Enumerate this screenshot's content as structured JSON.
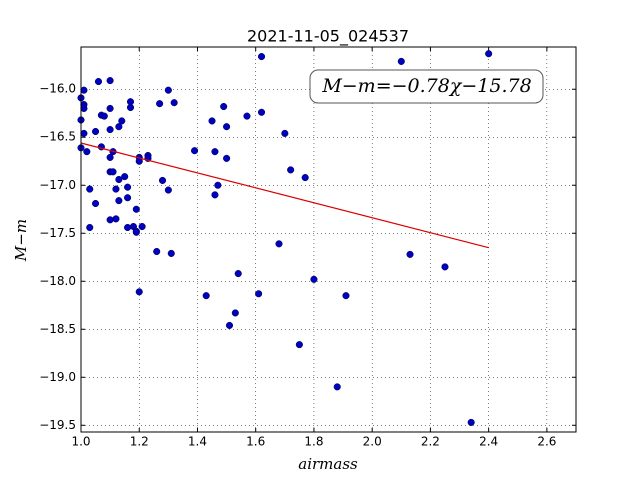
{
  "chart_data": {
    "type": "scatter",
    "title": "2021-11-05_024537",
    "x_label": "airmass",
    "y_label": "M−m",
    "annotation": "M−m=−0.78χ−15.78",
    "color": "#0000c0",
    "x": [
      1.01,
      1.0,
      1.01,
      1.0,
      1.01,
      1.01,
      1.0,
      1.02,
      1.03,
      1.05,
      1.03,
      1.05,
      1.06,
      1.07,
      1.08,
      1.07,
      1.1,
      1.1,
      1.1,
      1.1,
      1.11,
      1.1,
      1.11,
      1.1,
      1.13,
      1.14,
      1.13,
      1.12,
      1.13,
      1.12,
      1.15,
      1.16,
      1.16,
      1.16,
      1.17,
      1.17,
      1.18,
      1.19,
      1.19,
      1.19,
      1.2,
      1.2,
      1.21,
      1.23,
      1.23,
      1.2,
      1.26,
      1.27,
      1.28,
      1.3,
      1.3,
      1.32,
      1.31,
      1.39,
      1.43,
      1.45,
      1.46,
      1.46,
      1.47,
      1.49,
      1.5,
      1.5,
      1.51,
      1.53,
      1.54,
      1.57,
      1.61,
      1.62,
      1.62,
      1.68,
      1.7,
      1.72,
      1.75,
      1.77,
      1.8,
      1.88,
      1.91,
      2.1,
      2.13,
      2.25,
      2.34,
      2.4
    ],
    "values": [
      -16.01,
      -16.09,
      -16.16,
      -16.32,
      -16.2,
      -16.46,
      -16.61,
      -16.65,
      -17.04,
      -17.19,
      -17.44,
      -16.44,
      -15.92,
      -16.27,
      -16.28,
      -16.6,
      -15.91,
      -16.2,
      -16.42,
      -16.71,
      -16.65,
      -16.86,
      -16.86,
      -17.36,
      -16.39,
      -16.33,
      -16.94,
      -17.04,
      -17.16,
      -17.35,
      -16.91,
      -17.02,
      -17.13,
      -17.44,
      -16.13,
      -16.19,
      -17.43,
      -17.48,
      -17.25,
      -17.49,
      -16.71,
      -16.75,
      -17.43,
      -16.69,
      -16.72,
      -18.11,
      -17.69,
      -16.15,
      -16.95,
      -16.01,
      -17.05,
      -16.14,
      -17.71,
      -16.64,
      -18.15,
      -16.33,
      -16.65,
      -17.1,
      -17.0,
      -16.18,
      -16.39,
      -16.72,
      -18.46,
      -18.33,
      -17.92,
      -16.28,
      -18.13,
      -16.24,
      -15.66,
      -17.61,
      -16.46,
      -16.84,
      -18.66,
      -16.92,
      -17.98,
      -19.1,
      -18.15,
      -15.71,
      -17.72,
      -17.85,
      -19.47,
      -15.63
    ],
    "fit_line": {
      "x": [
        1.0,
        2.4
      ],
      "values": [
        -16.56,
        -17.65
      ],
      "color": "#dd0000"
    },
    "xlim": [
      1.0,
      2.7
    ],
    "ylim": [
      -19.57,
      -15.56
    ],
    "xticks": [
      {
        "value": 1.0,
        "label": "1.0"
      },
      {
        "value": 1.2,
        "label": "1.2"
      },
      {
        "value": 1.4,
        "label": "1.4"
      },
      {
        "value": 1.6,
        "label": "1.6"
      },
      {
        "value": 1.8,
        "label": "1.8"
      },
      {
        "value": 2.0,
        "label": "2.0"
      },
      {
        "value": 2.2,
        "label": "2.2"
      },
      {
        "value": 2.4,
        "label": "2.4"
      },
      {
        "value": 2.6,
        "label": "2.6"
      }
    ],
    "yticks": [
      {
        "value": -16.0,
        "label": "−16.0"
      },
      {
        "value": -16.5,
        "label": "−16.5"
      },
      {
        "value": -17.0,
        "label": "−17.0"
      },
      {
        "value": -17.5,
        "label": "−17.5"
      },
      {
        "value": -18.0,
        "label": "−18.0"
      },
      {
        "value": -18.5,
        "label": "−18.5"
      },
      {
        "value": -19.0,
        "label": "−19.0"
      },
      {
        "value": -19.5,
        "label": "−19.5"
      }
    ],
    "grid": true
  }
}
